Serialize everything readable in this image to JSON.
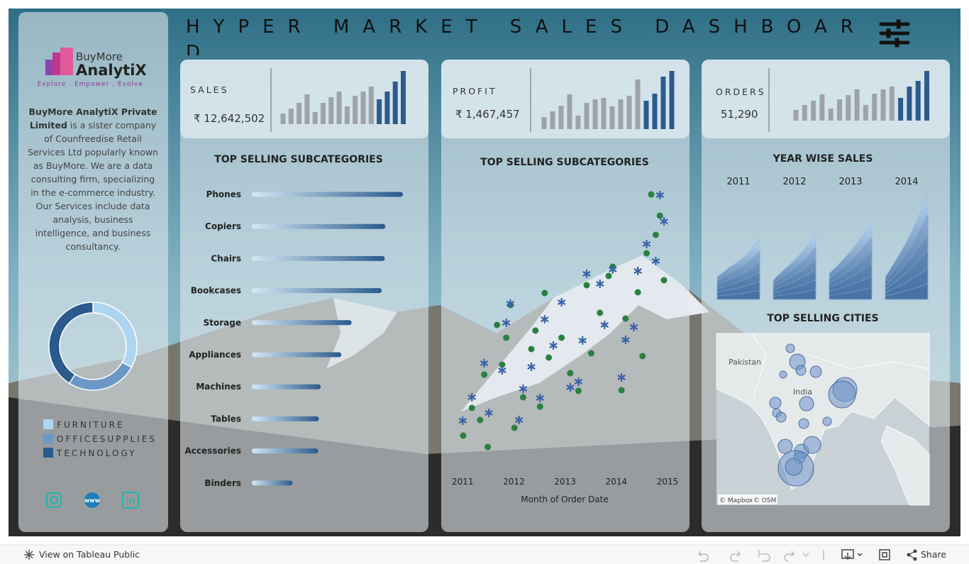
{
  "header": {
    "title": "HYPER MARKET SALES DASHBOARD"
  },
  "sidebar": {
    "brand": "BuyMore",
    "brand2": "AnalytiX",
    "tagline": "Explore . Empower . Evolve .",
    "about_bold": "BuyMore AnalytiX Private Limited",
    "about": " is a sister company of Counfreedise Retail Services Ltd popularly known as BuyMore. We are a data consulting firm, specializing in the e-commerce industry. Our Services include data analysis, business intelligence, and business consultancy.",
    "social": [
      "www",
      "in"
    ]
  },
  "kpis": [
    {
      "label": "SALES",
      "value": "₹ 12,642,502",
      "values": [
        15,
        22,
        30,
        42,
        17,
        30,
        38,
        46,
        25,
        40,
        46,
        53,
        35,
        46,
        60,
        75
      ],
      "colors": [
        "#9ea3a8",
        "#9ea3a8",
        "#9ea3a8",
        "#9ea3a8",
        "#9ea3a8",
        "#9ea3a8",
        "#9ea3a8",
        "#9ea3a8",
        "#9ea3a8",
        "#9ea3a8",
        "#9ea3a8",
        "#9ea3a8",
        "#2c5a8d",
        "#2c5a8d",
        "#2c5a8d",
        "#2c5a8d"
      ]
    },
    {
      "label": "PROFIT",
      "value": "₹ 1,467,457",
      "values": [
        17,
        25,
        33,
        49,
        19,
        37,
        42,
        44,
        32,
        42,
        47,
        70,
        40,
        50,
        74,
        82
      ],
      "colors": [
        "#9ea3a8",
        "#9ea3a8",
        "#9ea3a8",
        "#9ea3a8",
        "#9ea3a8",
        "#9ea3a8",
        "#9ea3a8",
        "#9ea3a8",
        "#9ea3a8",
        "#9ea3a8",
        "#9ea3a8",
        "#9ea3a8",
        "#2c5a8d",
        "#2c5a8d",
        "#2c5a8d",
        "#2c5a8d"
      ]
    },
    {
      "label": "ORDERS",
      "value": "51,290",
      "values": [
        15,
        22,
        28,
        37,
        17,
        30,
        36,
        44,
        22,
        38,
        44,
        48,
        32,
        48,
        56,
        70
      ],
      "colors": [
        "#9ea3a8",
        "#9ea3a8",
        "#9ea3a8",
        "#9ea3a8",
        "#9ea3a8",
        "#9ea3a8",
        "#9ea3a8",
        "#9ea3a8",
        "#9ea3a8",
        "#9ea3a8",
        "#9ea3a8",
        "#9ea3a8",
        "#2c5a8d",
        "#2c5a8d",
        "#2c5a8d",
        "#2c5a8d"
      ]
    }
  ],
  "chart_data": [
    {
      "type": "donut",
      "categories": [
        "FURNITURE",
        "OFFICESUPPLIES",
        "TECHNOLOGY"
      ],
      "values": [
        33,
        26,
        41
      ],
      "colors": [
        "#aed6f1",
        "#6b98c6",
        "#2b5a8c"
      ]
    },
    {
      "type": "hbar",
      "title": "TOP SELLING SUBCATEGORIES",
      "categories": [
        "Phones",
        "Copiers",
        "Chairs",
        "Bookcases",
        "Storage",
        "Appliances",
        "Machines",
        "Tables",
        "Accessories",
        "Binders"
      ],
      "values": [
        1706824,
        1509436,
        1501682,
        1466572,
        1127086,
        1011064,
        779060,
        757042,
        749237,
        461912
      ],
      "color_start": "#d3e7f5",
      "color": "#2b5a8c"
    },
    {
      "type": "scatter",
      "title": "TOP SELLING SUBCATEGORIES",
      "x_label": "Month of Order Date",
      "xlim": [
        2010.83,
        2015.29
      ],
      "xticks": [
        2011,
        2012,
        2013,
        2014,
        2015
      ],
      "series": [
        {
          "color": "#2a8040",
          "marker": "circle",
          "x": [
            2011.01,
            2011.18,
            2011.34,
            2011.49,
            2011.42,
            2011.77,
            2011.67,
            2011.85,
            2011.93,
            2012.01,
            2012.18,
            2012.51,
            2012.34,
            2012.42,
            2012.68,
            2012.6,
            2012.93,
            2013.1,
            2013.26,
            2013.51,
            2013.42,
            2013.68,
            2013.85,
            2013.93,
            2014.18,
            2014.51,
            2014.1,
            2014.42,
            2014.59,
            2014.77,
            2014.85,
            2014.68,
            2014.93
          ],
          "values": [
            86,
            125,
            108,
            70,
            172,
            186,
            242,
            224,
            270,
            97,
            140,
            127,
            208,
            234,
            196,
            287,
            224,
            174,
            149,
            202,
            298,
            259,
            311,
            324,
            251,
            198,
            150,
            288,
            343,
            369,
            396,
            426,
            305
          ]
        },
        {
          "color": "#3a63a8",
          "marker": "asterisk",
          "x": [
            2011,
            2011.18,
            2011.51,
            2011.42,
            2011.77,
            2011.85,
            2011.93,
            2012.1,
            2012.18,
            2012.51,
            2012.34,
            2012.6,
            2012.77,
            2012.93,
            2013.1,
            2013.26,
            2013.34,
            2013.42,
            2013.68,
            2013.77,
            2013.93,
            2014.1,
            2014.18,
            2014.34,
            2014.42,
            2014.59,
            2014.77,
            2014.85,
            2014.93
          ],
          "values": [
            107,
            140,
            118,
            188,
            178,
            245,
            272,
            108,
            152,
            139,
            183,
            250,
            213,
            274,
            154,
            162,
            220,
            314,
            300,
            242,
            320,
            168,
            221,
            239,
            318,
            356,
            332,
            425,
            388
          ]
        }
      ]
    },
    {
      "type": "area",
      "title": "YEAR WISE SALES",
      "categories": [
        "2011",
        "2012",
        "2013",
        "2014"
      ],
      "values": [
        [
          32,
          36,
          40,
          45,
          48,
          52,
          56,
          60,
          66,
          72,
          78,
          84
        ],
        [
          27,
          33,
          38,
          43,
          48,
          53,
          58,
          64,
          70,
          77,
          85,
          92
        ],
        [
          37,
          42,
          47,
          53,
          59,
          65,
          71,
          78,
          86,
          93,
          101,
          109
        ],
        [
          32,
          40,
          49,
          58,
          67,
          77,
          87,
          98,
          110,
          122,
          136,
          150
        ]
      ],
      "color_start": "#b6d3ec",
      "color": "#4a73a5"
    },
    {
      "type": "bubble_map",
      "title": "TOP SELLING CITIES",
      "xlim": [
        66.6,
        103.4
      ],
      "ylim": [
        8.6,
        30
      ],
      "x": [
        79.36,
        80.59,
        81.2,
        83.78,
        78.13,
        88.81,
        88.32,
        82.18,
        76.78,
        77.03,
        77.77,
        81.69,
        85.74,
        78.5,
        81.32,
        83.16,
        80.96,
        80.34,
        79.97
      ],
      "y": [
        28.14,
        26.46,
        25.4,
        25.22,
        24.87,
        23.01,
        22.39,
        21.24,
        21.33,
        20.09,
        19.56,
        18.76,
        19.03,
        15.93,
        15.31,
        16.11,
        14.51,
        13.19,
        13.36
      ],
      "values": [
        36,
        121,
        49,
        64,
        25,
        289,
        361,
        100,
        64,
        36,
        49,
        49,
        36,
        100,
        100,
        144,
        64,
        625,
        144
      ],
      "color": "#6f93c8",
      "map_labels": [
        "Pakistan",
        "India"
      ],
      "attribution": [
        "© Mapbox",
        "© OSM"
      ]
    }
  ],
  "footer": {
    "view": "View on Tableau Public",
    "share": "Share"
  }
}
